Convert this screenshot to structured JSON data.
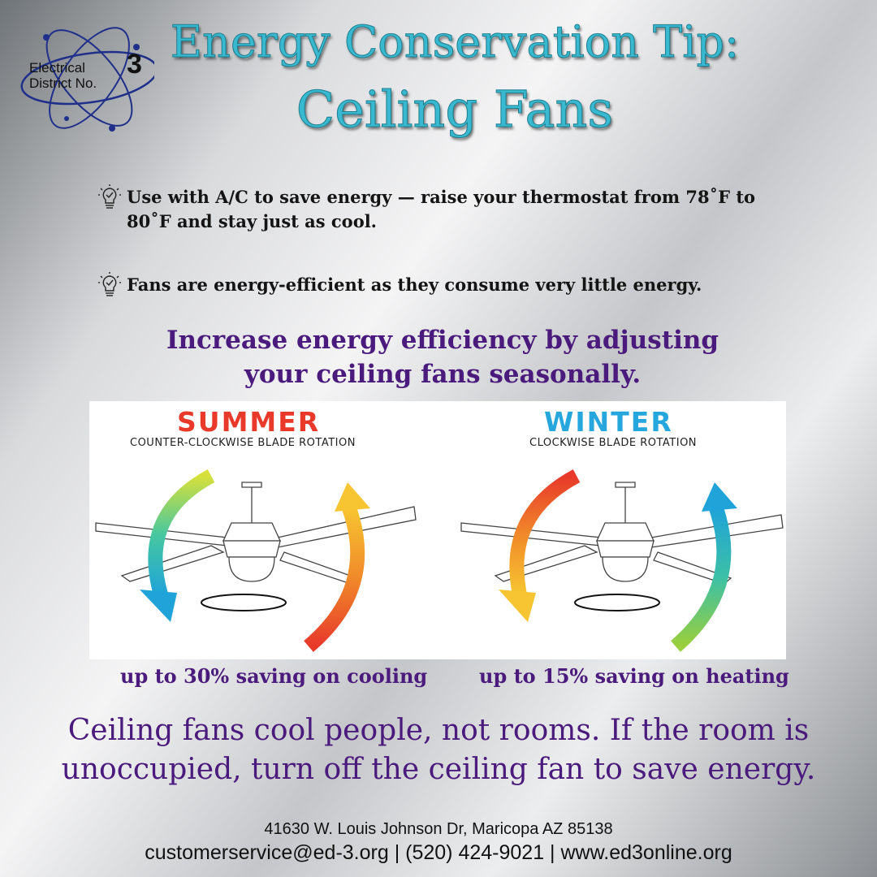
{
  "logo": {
    "line1": "Electrical",
    "line2": "District No.",
    "number": "3"
  },
  "title": {
    "line1": "Energy Conservation Tip:",
    "line2": "Ceiling Fans"
  },
  "tips": [
    {
      "icon": "lightbulb-check-icon",
      "text": "Use with A/C to save energy — raise your thermostat from 78˚F to 80˚F and stay just as cool."
    },
    {
      "icon": "lightbulb-check-icon",
      "text": "Fans are energy-efficient as they consume very little energy."
    }
  ],
  "subhead": {
    "line1": "Increase energy efficiency by adjusting",
    "line2": "your ceiling fans seasonally."
  },
  "summer": {
    "label": "SUMMER",
    "rotation": "COUNTER-CLOCKWISE BLADE ROTATION",
    "caption": "up to 30% saving on cooling",
    "color": "#e8392b"
  },
  "winter": {
    "label": "WINTER",
    "rotation": "CLOCKWISE BLADE ROTATION",
    "caption": "up to 15% saving on heating",
    "color": "#25a6dc"
  },
  "closing": {
    "line1": "Ceiling fans cool people, not rooms. If the room is",
    "line2": "unoccupied, turn off the ceiling fan to save energy."
  },
  "footer": {
    "address": "41630 W. Louis Johnson Dr, Maricopa AZ 85138",
    "contact": "customerservice@ed-3.org | (520) 424-9021 | www.ed3online.org"
  },
  "colors": {
    "title": "#38b9cf",
    "purple": "#4a1a7c"
  }
}
